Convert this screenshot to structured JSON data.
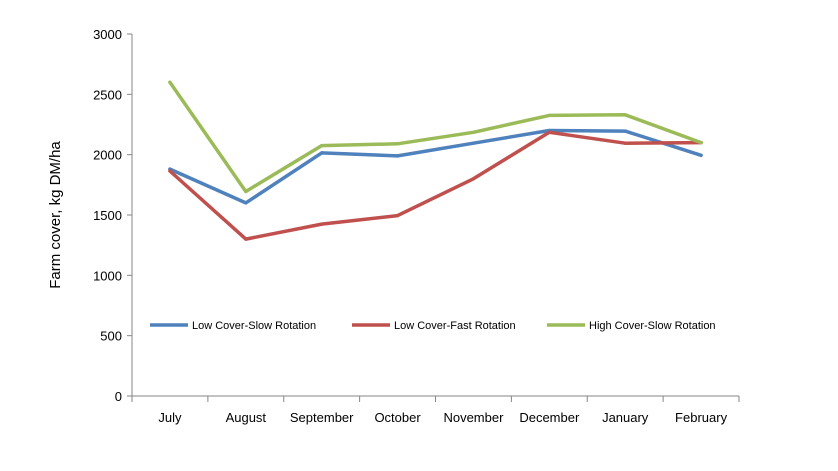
{
  "chart_data": {
    "type": "line",
    "ylabel": "Farm cover, kg DM/ha",
    "xlabel": "",
    "ylim": [
      0,
      3000
    ],
    "yticks": [
      "0",
      "500",
      "1000",
      "1500",
      "2000",
      "2500",
      "3000"
    ],
    "categories": [
      "July",
      "August",
      "September",
      "October",
      "November",
      "December",
      "January",
      "February"
    ],
    "grid": false,
    "legend_position": "inside-middle",
    "series": [
      {
        "name": "Low Cover-Slow Rotation",
        "color": "#4F81BD",
        "values": [
          1880,
          1600,
          2015,
          1990,
          2095,
          2200,
          2195,
          1995
        ]
      },
      {
        "name": "Low Cover-Fast Rotation",
        "color": "#C0504D",
        "values": [
          1865,
          1300,
          1425,
          1495,
          1800,
          2185,
          2095,
          2100
        ]
      },
      {
        "name": "High Cover-Slow Rotation",
        "color": "#9BBB59",
        "values": [
          2600,
          1695,
          2075,
          2090,
          2185,
          2325,
          2330,
          2100
        ]
      }
    ]
  }
}
